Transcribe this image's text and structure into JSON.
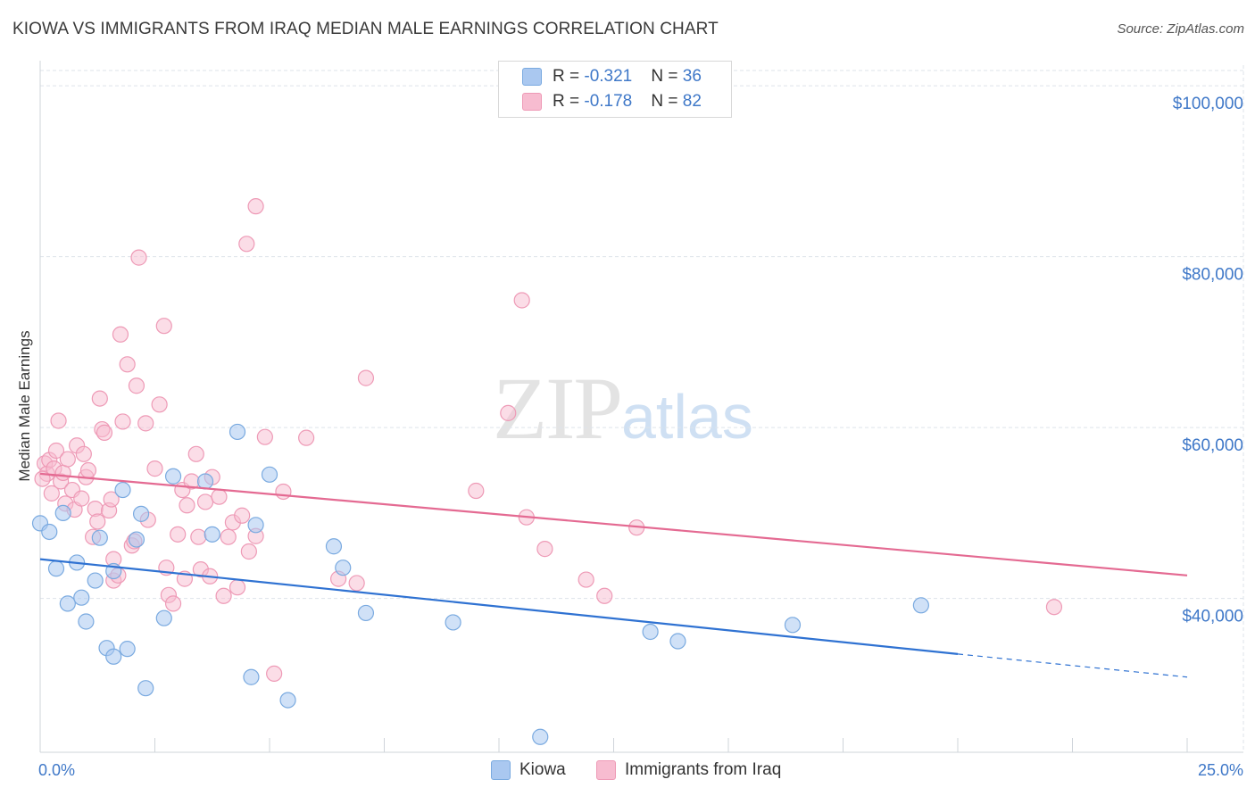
{
  "header": {
    "title": "KIOWA VS IMMIGRANTS FROM IRAQ MEDIAN MALE EARNINGS CORRELATION CHART",
    "source": "Source: ZipAtlas.com"
  },
  "legend": {
    "rows": [
      {
        "r_label": "R = ",
        "r_value": "-0.321",
        "n_label": "N = ",
        "n_value": "36",
        "color": "#aac8f0",
        "border": "#7aaae0"
      },
      {
        "r_label": "R = ",
        "r_value": "-0.178",
        "n_label": "N = ",
        "n_value": "82",
        "color": "#f7bcd0",
        "border": "#ee9ab6"
      }
    ]
  },
  "watermark": {
    "zip": "ZIP",
    "atlas": "atlas"
  },
  "colors": {
    "kiowa_fill": "rgba(170,200,240,0.55)",
    "kiowa_stroke": "#7aaae0",
    "kiowa_line": "#2f72d2",
    "iraq_fill": "rgba(247,188,208,0.5)",
    "iraq_stroke": "#ee9ab6",
    "iraq_line": "#e46a92",
    "grid": "#dde3ea",
    "axis_text": "#3f78c8"
  },
  "chart_data": {
    "type": "scatter",
    "title": "KIOWA VS IMMIGRANTS FROM IRAQ MEDIAN MALE EARNINGS CORRELATION CHART",
    "xlabel": "",
    "ylabel": "Median Male Earnings",
    "xlim": [
      0,
      25
    ],
    "ylim": [
      22000,
      102000
    ],
    "x_tick_labels": [
      "0.0%",
      "25.0%"
    ],
    "y_ticks": [
      40000,
      60000,
      80000,
      100000
    ],
    "y_tick_labels": [
      "$40,000",
      "$60,000",
      "$80,000",
      "$100,000"
    ],
    "grid": true,
    "legend_position": "top-center",
    "series": [
      {
        "name": "Kiowa",
        "points": [
          [
            0.0,
            48800
          ],
          [
            0.2,
            47800
          ],
          [
            0.35,
            43500
          ],
          [
            0.5,
            50000
          ],
          [
            0.6,
            39400
          ],
          [
            0.8,
            44200
          ],
          [
            0.9,
            40100
          ],
          [
            1.0,
            37300
          ],
          [
            1.2,
            42100
          ],
          [
            1.3,
            47100
          ],
          [
            1.45,
            34200
          ],
          [
            1.6,
            33200
          ],
          [
            1.6,
            43200
          ],
          [
            1.9,
            34100
          ],
          [
            2.1,
            46900
          ],
          [
            2.2,
            49900
          ],
          [
            2.3,
            29500
          ],
          [
            2.7,
            37700
          ],
          [
            2.9,
            54300
          ],
          [
            3.6,
            53700
          ],
          [
            3.75,
            47500
          ],
          [
            4.3,
            59500
          ],
          [
            4.6,
            30800
          ],
          [
            4.7,
            48600
          ],
          [
            5.0,
            54500
          ],
          [
            5.4,
            28100
          ],
          [
            6.4,
            46100
          ],
          [
            6.6,
            43600
          ],
          [
            7.1,
            38300
          ],
          [
            9.0,
            37200
          ],
          [
            10.9,
            23800
          ],
          [
            13.3,
            36100
          ],
          [
            13.9,
            35000
          ],
          [
            16.4,
            36900
          ],
          [
            19.2,
            39200
          ],
          [
            1.8,
            52700
          ]
        ],
        "trend": {
          "x0": 0,
          "y0": 44600,
          "x1": 20,
          "y1": 33500,
          "dash_to_x": 25,
          "dash_to_y": 30800
        }
      },
      {
        "name": "Immigrants from Iraq",
        "points": [
          [
            0.1,
            55800
          ],
          [
            0.15,
            54600
          ],
          [
            0.2,
            56200
          ],
          [
            0.25,
            52300
          ],
          [
            0.3,
            55200
          ],
          [
            0.35,
            57300
          ],
          [
            0.4,
            60800
          ],
          [
            0.45,
            53700
          ],
          [
            0.5,
            54700
          ],
          [
            0.55,
            51100
          ],
          [
            0.6,
            56300
          ],
          [
            0.7,
            52700
          ],
          [
            0.75,
            50400
          ],
          [
            0.8,
            57900
          ],
          [
            0.9,
            51700
          ],
          [
            0.95,
            56900
          ],
          [
            1.0,
            54200
          ],
          [
            1.05,
            55000
          ],
          [
            1.15,
            47200
          ],
          [
            1.2,
            50500
          ],
          [
            1.3,
            63400
          ],
          [
            1.35,
            59800
          ],
          [
            1.4,
            59400
          ],
          [
            1.5,
            50300
          ],
          [
            1.55,
            51600
          ],
          [
            1.6,
            44600
          ],
          [
            1.6,
            42100
          ],
          [
            1.7,
            42700
          ],
          [
            1.75,
            70900
          ],
          [
            1.8,
            60700
          ],
          [
            1.9,
            67400
          ],
          [
            2.0,
            46200
          ],
          [
            2.1,
            64900
          ],
          [
            2.15,
            79900
          ],
          [
            2.3,
            60500
          ],
          [
            2.35,
            49200
          ],
          [
            2.5,
            55200
          ],
          [
            2.6,
            62700
          ],
          [
            2.7,
            71900
          ],
          [
            2.75,
            43600
          ],
          [
            2.8,
            40400
          ],
          [
            2.9,
            39400
          ],
          [
            3.0,
            47500
          ],
          [
            3.1,
            52700
          ],
          [
            3.15,
            42300
          ],
          [
            3.2,
            50900
          ],
          [
            3.3,
            53700
          ],
          [
            3.4,
            56900
          ],
          [
            3.45,
            47200
          ],
          [
            3.5,
            43400
          ],
          [
            3.6,
            51300
          ],
          [
            3.7,
            42600
          ],
          [
            3.75,
            54200
          ],
          [
            3.9,
            51900
          ],
          [
            4.0,
            40300
          ],
          [
            4.1,
            47200
          ],
          [
            4.2,
            48900
          ],
          [
            4.3,
            41300
          ],
          [
            4.4,
            49700
          ],
          [
            4.5,
            81500
          ],
          [
            4.55,
            45500
          ],
          [
            4.7,
            85900
          ],
          [
            4.7,
            47300
          ],
          [
            4.9,
            58900
          ],
          [
            5.1,
            31200
          ],
          [
            5.3,
            52500
          ],
          [
            5.8,
            58800
          ],
          [
            6.5,
            42300
          ],
          [
            6.9,
            41800
          ],
          [
            7.1,
            65800
          ],
          [
            9.5,
            52600
          ],
          [
            10.2,
            61700
          ],
          [
            10.5,
            74900
          ],
          [
            10.6,
            49500
          ],
          [
            11.0,
            45800
          ],
          [
            11.9,
            42200
          ],
          [
            12.3,
            40300
          ],
          [
            13.0,
            48300
          ],
          [
            22.1,
            39000
          ],
          [
            0.05,
            54000
          ],
          [
            2.05,
            46700
          ],
          [
            1.25,
            49000
          ]
        ],
        "trend": {
          "x0": 0,
          "y0": 54600,
          "x1": 25,
          "y1": 42700
        }
      }
    ]
  }
}
